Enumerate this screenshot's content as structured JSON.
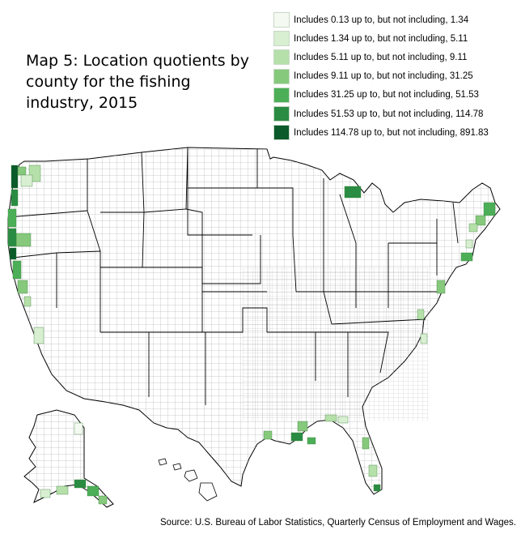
{
  "title": "Map 5: Location quotients by county for the fishing industry, 2015",
  "legend": [
    {
      "label": "Includes 0.13 up to, but not including, 1.34",
      "color": "#f4faf1"
    },
    {
      "label": "Includes 1.34 up to, but not including, 5.11",
      "color": "#d8efd1"
    },
    {
      "label": "Includes 5.11 up to, but not including, 9.11",
      "color": "#b6e0aa"
    },
    {
      "label": "Includes 9.11 up to, but not including, 31.25",
      "color": "#86c97c"
    },
    {
      "label": "Includes 31.25 up to, but not including, 51.53",
      "color": "#4caf58"
    },
    {
      "label": "Includes 51.53 up to, but not including, 114.78",
      "color": "#2a8c42"
    },
    {
      "label": "Includes 114.78 up to, but not including, 891.83",
      "color": "#0b5a2a"
    }
  ],
  "source": "Source: U.S. Bureau of Labor Statistics, Quarterly Census of Employment and Wages."
}
